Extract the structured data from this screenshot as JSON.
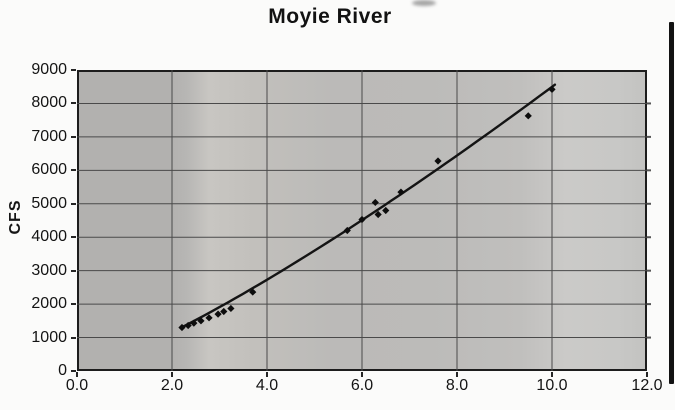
{
  "title": "Moyie River",
  "chart_data": {
    "type": "scatter",
    "title": "Moyie River",
    "xlabel": "",
    "ylabel": "CFS",
    "xlim": [
      0,
      12
    ],
    "ylim": [
      0,
      9000
    ],
    "grid": true,
    "legend": "none",
    "marker": "diamond",
    "x_ticks": [
      0,
      2,
      4,
      6,
      8,
      10,
      12
    ],
    "x_tick_labels": [
      "0.0",
      "2.0",
      "4.0",
      "6.0",
      "8.0",
      "10.0",
      "12.0"
    ],
    "y_ticks": [
      0,
      1000,
      2000,
      3000,
      4000,
      5000,
      6000,
      7000,
      8000,
      9000
    ],
    "y_tick_labels": [
      "0",
      "1000",
      "2000",
      "3000",
      "4000",
      "5000",
      "6000",
      "7000",
      "8000",
      "9000"
    ],
    "points": [
      [
        2.21,
        1300
      ],
      [
        2.34,
        1360
      ],
      [
        2.46,
        1430
      ],
      [
        2.61,
        1500
      ],
      [
        2.78,
        1590
      ],
      [
        2.97,
        1700
      ],
      [
        3.09,
        1780
      ],
      [
        3.24,
        1870
      ],
      [
        3.7,
        2360
      ],
      [
        5.69,
        4200
      ],
      [
        6.0,
        4530
      ],
      [
        6.28,
        5040
      ],
      [
        6.34,
        4680
      ],
      [
        6.5,
        4800
      ],
      [
        6.82,
        5350
      ],
      [
        7.6,
        6280
      ],
      [
        9.5,
        7630
      ],
      [
        10.0,
        8420
      ]
    ],
    "trendline": {
      "type": "power",
      "a": 489,
      "b": 1.24,
      "x_start": 2.18,
      "x_end": 10.06
    },
    "colors": {
      "marker": "#0d0d0d",
      "trend_line": "#141414",
      "gridline": "#4a4a4a",
      "plot_border": "#1d1d1d",
      "plot_bg": "#bdbcba"
    }
  }
}
